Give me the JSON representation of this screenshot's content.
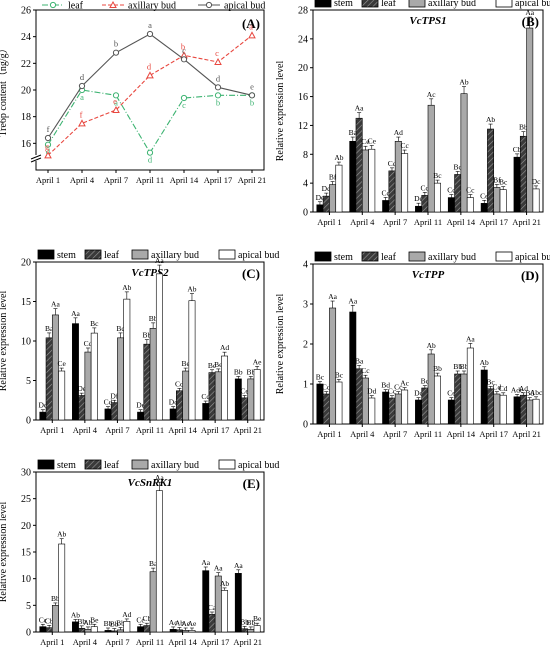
{
  "chart_data": [
    {
      "panel": "(A)",
      "type": "line",
      "title": "",
      "ylabel": "Tre6p content（ng/g）",
      "xlabel": "",
      "categories": [
        "April 1",
        "April 4",
        "April 7",
        "April 11",
        "April 14",
        "April 17",
        "April 21"
      ],
      "ylim": [
        14,
        26
      ],
      "yticks": [
        "16",
        "18",
        "20",
        "22",
        "24",
        "26"
      ],
      "axis_break": true,
      "series": [
        {
          "name": "leaf",
          "style": "dash-dot",
          "color": "#3cb371",
          "marker": "open-circle",
          "values": [
            15.9,
            20.0,
            19.6,
            15.3,
            19.4,
            19.6,
            19.6
          ],
          "letters": [
            "d",
            "a",
            "a",
            "d",
            "c",
            "b",
            "b"
          ]
        },
        {
          "name": "axillary bud",
          "style": "dash",
          "color": "#e8473f",
          "marker": "open-triangle",
          "values": [
            15.1,
            17.5,
            18.5,
            21.1,
            22.6,
            22.1,
            24.1
          ],
          "letters": [
            "g",
            "f",
            "e",
            "d",
            "b",
            "c",
            "a"
          ]
        },
        {
          "name": "apical bud",
          "style": "solid",
          "color": "#555555",
          "marker": "open-circle",
          "values": [
            16.4,
            20.3,
            22.8,
            24.2,
            22.3,
            20.2,
            19.6
          ],
          "letters": [
            "f",
            "d",
            "b",
            "a",
            "c",
            "d",
            "e"
          ]
        }
      ]
    },
    {
      "panel": "(B)",
      "type": "bar",
      "title": "VcTPS1",
      "ylabel": "Relative expression level",
      "xlabel": "",
      "categories": [
        "April 1",
        "April 4",
        "April 7",
        "April 11",
        "April 14",
        "April 17",
        "April 21"
      ],
      "ylim": [
        0,
        28
      ],
      "yticks": [
        "0",
        "4",
        "8",
        "12",
        "16",
        "20",
        "24",
        "28"
      ],
      "series": [
        {
          "name": "stem",
          "values": [
            1.0,
            9.8,
            1.6,
            0.8,
            2.0,
            1.2,
            7.6
          ],
          "labels": [
            "De",
            "Ba",
            "Cc",
            "De",
            "Cc",
            "Ce",
            "Cb"
          ]
        },
        {
          "name": "leaf",
          "values": [
            2.2,
            13.0,
            5.7,
            2.3,
            5.2,
            11.5,
            10.5
          ],
          "labels": [
            "Dd",
            "Aa",
            "Cc",
            "Cd",
            "Bc",
            "Ab",
            "Bb"
          ]
        },
        {
          "name": "axillary bud",
          "values": [
            3.8,
            8.6,
            9.8,
            14.8,
            16.4,
            3.4,
            25.5
          ],
          "labels": [
            "Bf",
            "Ce",
            "Ad",
            "Ac",
            "Ab",
            "Bf",
            "Aa"
          ]
        },
        {
          "name": "apical bud",
          "values": [
            6.5,
            8.7,
            8.1,
            4.0,
            2.0,
            3.1,
            3.2
          ],
          "labels": [
            "Ab",
            "Ce",
            "Cc",
            "Bc",
            "Cc",
            "Bc",
            "Dc"
          ]
        }
      ]
    },
    {
      "panel": "(C)",
      "type": "bar",
      "title": "VcTPS2",
      "ylabel": "Relative expression level",
      "xlabel": "",
      "categories": [
        "April 1",
        "April 4",
        "April 7",
        "April 11",
        "April 14",
        "April 17",
        "April 21"
      ],
      "ylim": [
        0,
        20
      ],
      "yticks": [
        "0",
        "5",
        "10",
        "15",
        "20"
      ],
      "series": [
        {
          "name": "stem",
          "values": [
            1.0,
            12.2,
            1.4,
            1.0,
            1.4,
            2.1,
            5.2
          ],
          "labels": [
            "Dc",
            "Aa",
            "Cd",
            "De",
            "Dc",
            "Cd",
            "Bb"
          ]
        },
        {
          "name": "leaf",
          "values": [
            10.4,
            3.1,
            2.2,
            9.6,
            3.7,
            6.0,
            2.8
          ],
          "labels": [
            "Ba",
            "De",
            "Df",
            "Bb",
            "Cd",
            "Bc",
            "Ce"
          ]
        },
        {
          "name": "axillary bud",
          "values": [
            13.3,
            8.6,
            10.4,
            11.6,
            6.2,
            6.1,
            5.2
          ],
          "labels": [
            "Aa",
            "Cd",
            "Bc",
            "Bb",
            "Be",
            "Be",
            "Bb"
          ]
        },
        {
          "name": "apical bud",
          "values": [
            6.2,
            11.0,
            15.3,
            18.5,
            15.1,
            8.1,
            6.4
          ],
          "labels": [
            "Ce",
            "Bc",
            "Ab",
            "Aa",
            "Ab",
            "Ad",
            "Ae"
          ]
        }
      ]
    },
    {
      "panel": "(D)",
      "type": "bar",
      "title": "VcTPP",
      "ylabel": "Relative expression level",
      "xlabel": "",
      "categories": [
        "April 1",
        "April 4",
        "April 7",
        "April 11",
        "April 14",
        "April 17",
        "April 21"
      ],
      "ylim": [
        0,
        4
      ],
      "yticks": [
        "0",
        "1",
        "2",
        "3",
        "4"
      ],
      "series": [
        {
          "name": "stem",
          "values": [
            1.0,
            2.8,
            0.8,
            0.6,
            0.6,
            1.35,
            0.68
          ],
          "labels": [
            "Bc",
            "Aa",
            "Bd",
            "Dc",
            "Ce",
            "Ab",
            "Ade"
          ]
        },
        {
          "name": "leaf",
          "values": [
            0.75,
            1.38,
            0.65,
            0.9,
            1.25,
            0.88,
            0.72
          ],
          "labels": [
            "Cd",
            "Ba",
            "Cc",
            "Bc",
            "Bb",
            "Bc",
            "Ad"
          ]
        },
        {
          "name": "axillary bud",
          "values": [
            2.9,
            1.15,
            0.75,
            1.75,
            1.25,
            0.75,
            0.6
          ],
          "labels": [
            "Aa",
            "Cc",
            "Cc",
            "Ab",
            "Bb",
            "Cd",
            "Bd"
          ]
        },
        {
          "name": "apical bud",
          "values": [
            1.05,
            0.65,
            0.85,
            1.2,
            1.9,
            0.72,
            0.62
          ],
          "labels": [
            "Bc",
            "Dd",
            "Ac",
            "Bb",
            "Aa",
            "Cd",
            "Abc"
          ]
        }
      ]
    },
    {
      "panel": "(E)",
      "type": "bar",
      "title": "VcSnRK1",
      "ylabel": "Relative expression level",
      "xlabel": "",
      "categories": [
        "April 1",
        "April 4",
        "April 7",
        "April 11",
        "April 14",
        "April 17",
        "April 21"
      ],
      "ylim": [
        0,
        30
      ],
      "yticks": [
        "0",
        "5",
        "10",
        "15",
        "20",
        "25",
        "30"
      ],
      "series": [
        {
          "name": "stem",
          "values": [
            1.0,
            1.9,
            0.3,
            1.0,
            0.5,
            11.5,
            11.0
          ],
          "labels": [
            "Cc",
            "Ab",
            "Bb",
            "Cc",
            "Ac",
            "Aa",
            "Aa"
          ]
        },
        {
          "name": "leaf",
          "values": [
            0.8,
            0.7,
            0.2,
            1.2,
            0.4,
            3.3,
            0.6
          ],
          "labels": [
            "Cb",
            "Bb",
            "Bb",
            "Cb",
            "Ab",
            "Ca",
            "Bb"
          ]
        },
        {
          "name": "axillary bud",
          "values": [
            5.0,
            0.5,
            0.4,
            11.3,
            0.3,
            10.5,
            0.5
          ],
          "labels": [
            "Bb",
            "Ab",
            "Bb",
            "Ba",
            "Ae",
            "Aa",
            "Bb"
          ]
        },
        {
          "name": "apical bud",
          "values": [
            16.5,
            1.0,
            2.0,
            26.5,
            0.3,
            7.8,
            1.2
          ],
          "labels": [
            "Ab",
            "Be",
            "Ad",
            "Aa",
            "Ae",
            "Ab",
            "Be"
          ]
        }
      ]
    }
  ]
}
